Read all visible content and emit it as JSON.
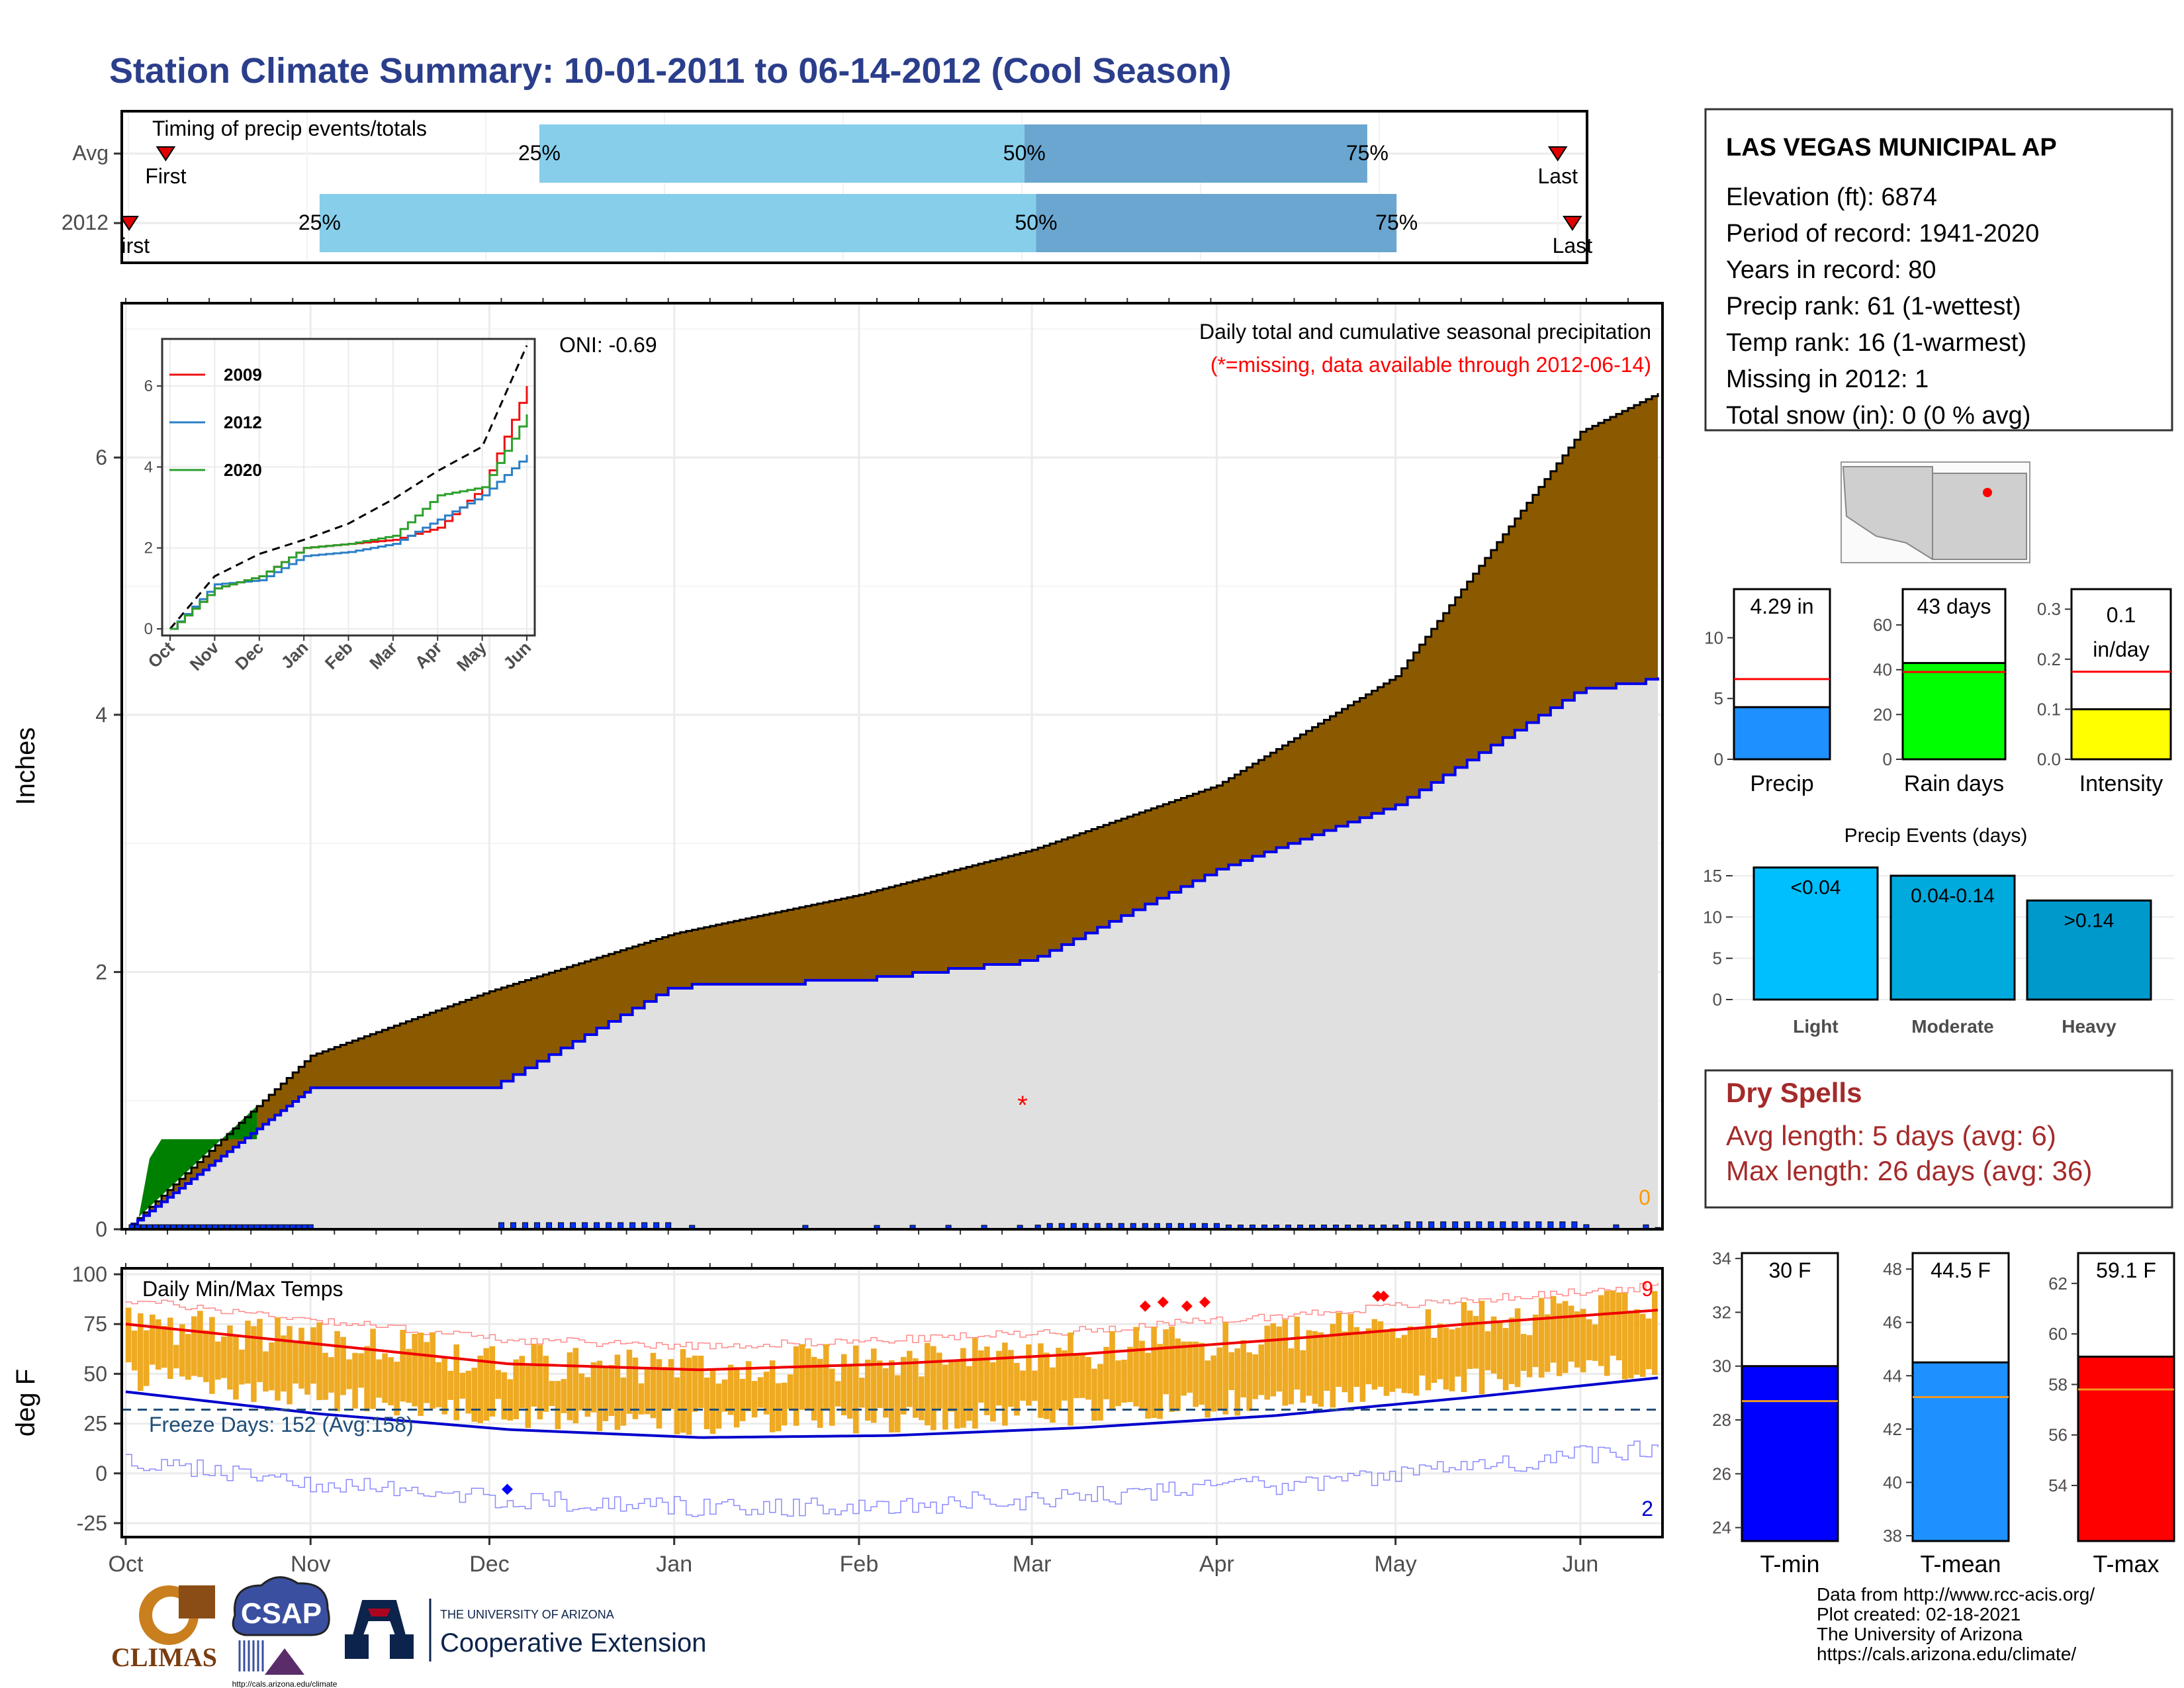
{
  "title": "Station Climate Summary: 10-01-2011 to 06-14-2012 (Cool Season)",
  "timing": {
    "label": "Timing of precip events/totals",
    "rows": [
      {
        "label": "Avg",
        "first_label": "First",
        "last_label": "Last",
        "p25_label": "25%",
        "p50_label": "50%",
        "p75_label": "75%",
        "p25": 0.285,
        "p50": 0.616,
        "p75": 0.85,
        "first": 0.03,
        "last": 0.98
      },
      {
        "label": "2012",
        "first_label": "First",
        "last_label": "Last",
        "p25_label": "25%",
        "p50_label": "50%",
        "p75_label": "75%",
        "p25": 0.135,
        "p50": 0.624,
        "p75": 0.87,
        "first": 0.005,
        "last": 0.99
      }
    ]
  },
  "station": {
    "name": "LAS VEGAS MUNICIPAL AP",
    "lines": [
      "Elevation (ft): 6874",
      "Period of record: 1941-2020",
      "Years in record: 80",
      "Precip rank: 61 (1-wettest)",
      "Temp rank: 16 (1-warmest)",
      "Missing in 2012: 1",
      "Total snow (in): 0 (0 % avg)"
    ]
  },
  "precip_panel": {
    "title": "Daily total and cumulative seasonal precipitation",
    "missing_note": "(*=missing, data available through 2012-06-14)",
    "oni": "ONI: -0.69",
    "ylabel": "Inches",
    "y_ticks": [
      "0",
      "2",
      "4",
      "6"
    ],
    "missing_marker": "*",
    "zero_label": "0",
    "colors": {
      "avg_fill": "#8B5A00",
      "surplus_fill": "#008000",
      "obs_fill": "#e0e0e0",
      "obs_line": "#0000ee",
      "daily_bar": "#0033ff"
    }
  },
  "inset": {
    "legend": [
      "2009",
      "2012",
      "2020"
    ],
    "legend_colors": [
      "#ee1111",
      "#2a7fc8",
      "#2ca02c"
    ],
    "y_ticks": [
      "0",
      "2",
      "4",
      "6"
    ],
    "x_ticks": [
      "Oct",
      "Nov",
      "Dec",
      "Jan",
      "Feb",
      "Mar",
      "Apr",
      "May",
      "Jun"
    ]
  },
  "temp_panel": {
    "title": "Daily Min/Max Temps",
    "ylabel": "deg F",
    "y_ticks": [
      "-25",
      "0",
      "25",
      "50",
      "75",
      "100"
    ],
    "freeze_label": "Freeze Days: 152 (Avg:158)",
    "record_high_count": "9",
    "record_low_count": "2",
    "colors": {
      "bars": "#EEAA22",
      "avg_max": "#ee0000",
      "avg_min": "#0000cc",
      "freeze": "#1f4e79"
    }
  },
  "x_months": [
    "Oct",
    "Nov",
    "Dec",
    "Jan",
    "Feb",
    "Mar",
    "Apr",
    "May",
    "Jun"
  ],
  "summary_bars": [
    {
      "label": "Precip",
      "value_text": "4.29 in",
      "value": 4.29,
      "avg": 6.6,
      "ylim": [
        0,
        14
      ],
      "ticks": [
        "0",
        "5",
        "10"
      ],
      "tick_values": [
        0,
        5,
        10
      ],
      "color": "#1e90ff"
    },
    {
      "label": "Rain days",
      "value_text": "43 days",
      "value": 43,
      "avg": 39,
      "ylim": [
        0,
        76
      ],
      "ticks": [
        "0",
        "20",
        "40",
        "60"
      ],
      "tick_values": [
        0,
        20,
        40,
        60
      ],
      "color": "#00ff00"
    },
    {
      "label": "Intensity",
      "value_text": "0.1 in/day",
      "value_line1": "0.1",
      "value_line2": "in/day",
      "value": 0.1,
      "avg": 0.175,
      "ylim": [
        0,
        0.34
      ],
      "ticks": [
        "0.0",
        "0.1",
        "0.2",
        "0.3"
      ],
      "tick_values": [
        0,
        0.1,
        0.2,
        0.3
      ],
      "color": "#ffff00"
    }
  ],
  "events": {
    "title": "Precip Events (days)",
    "categories": [
      "Light",
      "Moderate",
      "Heavy"
    ],
    "bar_labels": [
      "<0.04",
      "0.04-0.14",
      ">0.14"
    ],
    "values": [
      16,
      15,
      12
    ],
    "ticks": [
      "0",
      "5",
      "10",
      "15"
    ],
    "colors": [
      "#00bfff",
      "#00aadd",
      "#0099cc"
    ]
  },
  "dry_spells": {
    "title": "Dry Spells",
    "avg": "Avg length: 5 days (avg: 6)",
    "max": "Max length: 26 days (avg: 36)"
  },
  "temp_bars": [
    {
      "label": "T-min",
      "value_text": "30 F",
      "value": 30,
      "avg": 28.7,
      "ylim": [
        23.5,
        34.2
      ],
      "ticks": [
        "24",
        "26",
        "28",
        "30",
        "32",
        "34"
      ],
      "tick_values": [
        24,
        26,
        28,
        30,
        32,
        34
      ],
      "color": "#0000ff"
    },
    {
      "label": "T-mean",
      "value_text": "44.5 F",
      "value": 44.5,
      "avg": 43.2,
      "ylim": [
        37.8,
        48.6
      ],
      "ticks": [
        "38",
        "40",
        "42",
        "44",
        "46",
        "48"
      ],
      "tick_values": [
        38,
        40,
        42,
        44,
        46,
        48
      ],
      "color": "#1e90ff"
    },
    {
      "label": "T-max",
      "value_text": "59.1 F",
      "value": 59.1,
      "avg": 57.8,
      "ylim": [
        51.8,
        63.2
      ],
      "ticks": [
        "54",
        "56",
        "58",
        "60",
        "62"
      ],
      "tick_values": [
        54,
        56,
        58,
        60,
        62
      ],
      "color": "#ff0000"
    }
  ],
  "footer": {
    "lines": [
      "Data from http://www.rcc-acis.org/",
      "Plot created: 02-18-2021",
      "The University of Arizona",
      "https://cals.arizona.edu/climate/"
    ]
  },
  "logos": {
    "climas": "CLIMAS",
    "csap": "CSAP",
    "csap_url": "http://cals.arizona.edu/climate",
    "ua_small": "THE UNIVERSITY OF ARIZONA",
    "ua_big": "Cooperative Extension"
  },
  "chart_data": [
    {
      "type": "area",
      "title": "Daily total and cumulative seasonal precipitation",
      "ylabel": "Inches",
      "ylim": [
        0,
        7.2
      ],
      "x": [
        "10-01",
        "11-01",
        "12-01",
        "01-01",
        "02-01",
        "03-01",
        "04-01",
        "05-01",
        "06-01",
        "06-14"
      ],
      "series": [
        {
          "values": [
            0.0,
            1.35,
            1.85,
            2.3,
            2.6,
            2.95,
            3.45,
            4.3,
            6.2,
            6.5
          ]
        },
        {
          "values": [
            0.0,
            1.1,
            1.1,
            1.9,
            1.95,
            2.1,
            2.8,
            3.3,
            4.2,
            4.29
          ]
        }
      ]
    },
    {
      "type": "line",
      "x": [
        "Oct",
        "Nov",
        "Dec",
        "Jan",
        "Feb",
        "Mar",
        "Apr",
        "May",
        "Jun"
      ],
      "ylim": [
        0,
        7
      ],
      "series": [
        {
          "name": "2009",
          "values": [
            0.0,
            1.0,
            1.3,
            2.0,
            2.1,
            2.2,
            2.5,
            3.5,
            6.0
          ]
        },
        {
          "name": "2012",
          "values": [
            0.0,
            1.1,
            1.2,
            1.8,
            1.9,
            2.1,
            2.7,
            3.3,
            4.3
          ]
        },
        {
          "name": "2020",
          "values": [
            0.0,
            1.0,
            1.3,
            2.0,
            2.1,
            2.3,
            3.3,
            3.5,
            5.3
          ]
        }
      ]
    },
    {
      "type": "bar",
      "title": "Daily Min/Max Temps",
      "ylabel": "deg F",
      "ylim": [
        -32,
        103
      ],
      "x": [
        "Oct",
        "Nov",
        "Dec",
        "Jan",
        "Feb",
        "Mar",
        "Apr",
        "May",
        "Jun"
      ],
      "series": [
        {
          "values": [
            75,
            65,
            55,
            52,
            55,
            60,
            67,
            75,
            82
          ]
        },
        {
          "values": [
            41,
            30,
            22,
            18,
            19,
            23,
            29,
            38,
            48
          ]
        }
      ]
    },
    {
      "type": "bar",
      "title": "Precip Events (days)",
      "categories": [
        "Light",
        "Moderate",
        "Heavy"
      ],
      "values": [
        16,
        15,
        12
      ],
      "ylim": [
        0,
        17
      ]
    }
  ]
}
